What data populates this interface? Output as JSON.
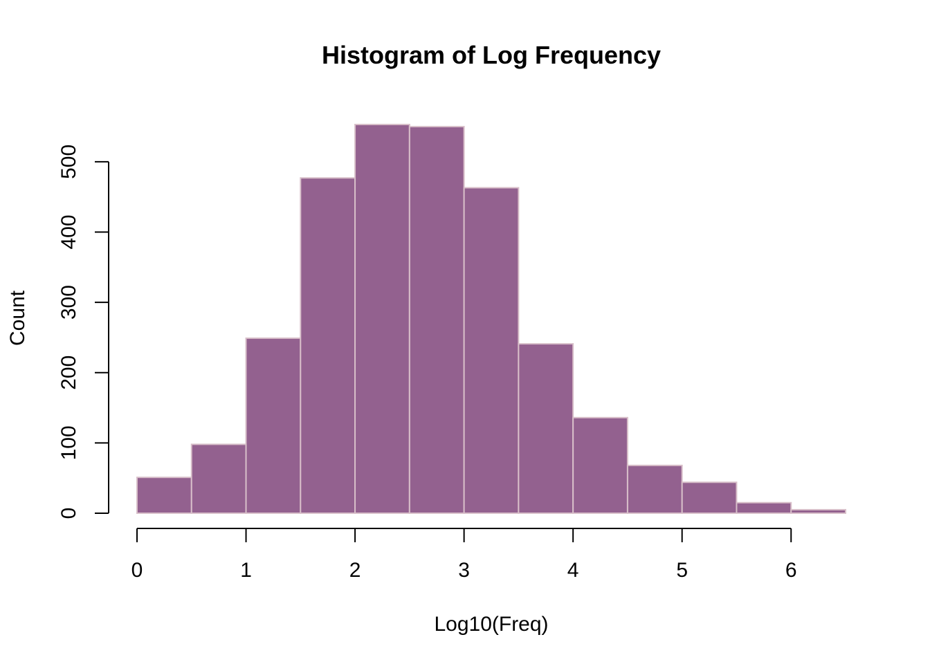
{
  "chart_data": {
    "type": "bar",
    "title": "Histogram of Log Frequency",
    "xlabel": "Log10(Freq)",
    "ylabel": "Count",
    "bin_edges": [
      0,
      0.5,
      1,
      1.5,
      2,
      2.5,
      3,
      3.5,
      4,
      4.5,
      5,
      5.5,
      6,
      6.5
    ],
    "values": [
      51,
      98,
      249,
      477,
      553,
      550,
      463,
      241,
      136,
      68,
      44,
      15,
      5
    ],
    "xlim": [
      0,
      6.5
    ],
    "ylim": [
      0,
      553
    ],
    "x_ticks": [
      0,
      1,
      2,
      3,
      4,
      5,
      6
    ],
    "x_tick_labels": [
      "0",
      "1",
      "2",
      "3",
      "4",
      "5",
      "6"
    ],
    "y_ticks": [
      0,
      100,
      200,
      300,
      400,
      500
    ],
    "y_tick_labels": [
      "0",
      "100",
      "200",
      "300",
      "400",
      "500"
    ],
    "grid": false,
    "legend": "none",
    "colors": {
      "bar_fill": "#93618F",
      "bar_border": "#D8BFC9"
    }
  }
}
